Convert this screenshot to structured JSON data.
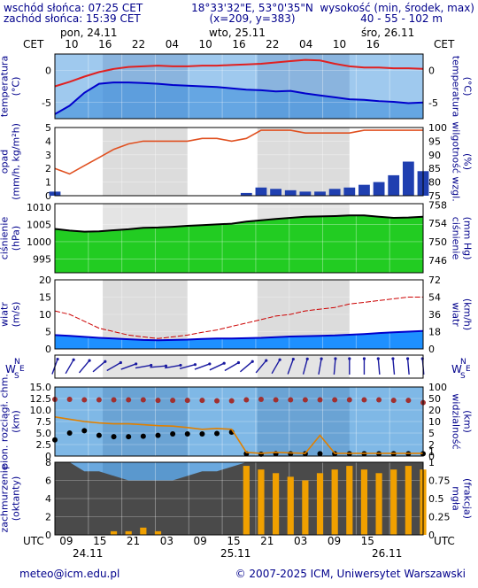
{
  "header": {
    "sunrise": "wschód słońca: 07:25 CET",
    "sunset": "zachód słońca: 15:39 CET",
    "coords": "18°33'32\"E, 53°0'35\"N",
    "grid": "(x=209,  y=383)",
    "altitude_title": "wysokość (min, środek, max)",
    "altitude_values": "40 - 55 - 102 m"
  },
  "footer": {
    "email": "meteo@icm.edu.pl",
    "copyright": "© 2007-2025 ICM, Uniwersytet Warszawski"
  },
  "timeline": {
    "top_tz": "CET",
    "bottom_tz": "UTC",
    "day_labels_top": [
      "pon, 24.11",
      "wto, 25.11",
      "śro, 26.11"
    ],
    "day_labels_bottom": [
      "24.11",
      "25.11",
      "26.11"
    ],
    "hour_labels_top": [
      "10",
      "16",
      "22",
      "04",
      "10",
      "16",
      "22",
      "04",
      "10",
      "16"
    ],
    "hour_labels_bottom": [
      "09",
      "15",
      "21",
      "03",
      "09",
      "15",
      "21",
      "03",
      "09",
      "15"
    ]
  },
  "chart_data": [
    {
      "id": "temperature",
      "type": "line",
      "ylabel_left": "temperatura\n(°C)",
      "ylabel_right": "(°C)\ntemperatura",
      "yticks": [
        "0",
        "-5"
      ],
      "ylim": [
        -7.5,
        2.5
      ],
      "colors": {
        "max": "#e02020",
        "mid": "#0000cc"
      },
      "series": [
        {
          "values": [
            -2.5,
            -1.8,
            -1.0,
            -0.3,
            0.2,
            0.5,
            0.6,
            0.7,
            0.6,
            0.6,
            0.7,
            0.7,
            0.8,
            0.9,
            1.0,
            1.2,
            1.4,
            1.6,
            1.5,
            1.0,
            0.6,
            0.4,
            0.4,
            0.3,
            0.3,
            0.2
          ]
        },
        {
          "values": [
            -6.8,
            -5.5,
            -3.5,
            -2.1,
            -1.9,
            -1.9,
            -2.0,
            -2.1,
            -2.3,
            -2.4,
            -2.5,
            -2.6,
            -2.8,
            -3.0,
            -3.1,
            -3.3,
            -3.2,
            -3.6,
            -3.9,
            -4.2,
            -4.5,
            -4.6,
            -4.8,
            -4.9,
            -5.1,
            -5.0
          ]
        }
      ]
    },
    {
      "id": "precipitation",
      "type": "bar",
      "ylabel_left": "opad\n(mm/h, kg/m²h)",
      "ylabel_right": "(%)\nwilgotność wzgl.",
      "yticks_left": [
        "5",
        "4",
        "3",
        "2",
        "1",
        "0"
      ],
      "yticks_right": [
        "100",
        "95",
        "90",
        "85",
        "80",
        "75"
      ],
      "ylim": [
        0,
        5
      ],
      "ylim_right": [
        75,
        100
      ],
      "colors": {
        "humidity": "#e05020",
        "precip": "#1f3fb0"
      },
      "humidity": [
        85,
        83,
        86,
        89,
        92,
        94,
        95,
        95,
        95,
        95,
        96,
        96,
        95,
        96,
        99,
        99,
        99,
        98,
        98,
        98,
        98,
        99,
        99,
        99,
        99,
        99
      ],
      "precip": [
        0.3,
        0,
        0,
        0,
        0,
        0,
        0,
        0,
        0,
        0,
        0,
        0,
        0,
        0.2,
        0.6,
        0.5,
        0.4,
        0.3,
        0.3,
        0.5,
        0.6,
        0.8,
        1.0,
        1.5,
        2.5,
        1.8
      ]
    },
    {
      "id": "pressure",
      "type": "area",
      "ylabel_left": "ciśnienie\n(hPa)",
      "ylabel_right": "(mm Hg)\nciśnienie",
      "yticks_left": [
        "1010",
        "1005",
        "1000",
        "995"
      ],
      "yticks_right": [
        "758",
        "754",
        "750",
        "746"
      ],
      "ylim": [
        991,
        1011
      ],
      "colors": {
        "line": "#000000",
        "fill": "#22cc22"
      },
      "values": [
        1003.7,
        1003.2,
        1002.9,
        1003.0,
        1003.3,
        1003.6,
        1004.0,
        1004.1,
        1004.3,
        1004.6,
        1004.8,
        1005.0,
        1005.2,
        1005.8,
        1006.2,
        1006.6,
        1006.9,
        1007.2,
        1007.3,
        1007.4,
        1007.6,
        1007.6,
        1007.2,
        1006.9,
        1007.0,
        1007.2
      ]
    },
    {
      "id": "wind",
      "type": "area",
      "ylabel_left": "wiatr\n(m/s)",
      "ylabel_right": "(km/h)\nwiatr",
      "yticks_left": [
        "20",
        "15",
        "10",
        "5",
        "0"
      ],
      "yticks_right": [
        "72",
        "54",
        "36",
        "18",
        "0"
      ],
      "ylim": [
        0,
        20
      ],
      "colors": {
        "speed": "#0000cc",
        "gusts": "#cc0000"
      },
      "speed": [
        4.0,
        3.8,
        3.5,
        3.2,
        3.0,
        2.8,
        2.6,
        2.5,
        2.6,
        2.7,
        2.9,
        3.0,
        3.0,
        3.1,
        3.2,
        3.4,
        3.6,
        3.7,
        3.8,
        3.9,
        4.1,
        4.3,
        4.6,
        4.8,
        5.0,
        5.2
      ],
      "gusts": [
        11,
        10,
        8,
        6,
        5,
        4,
        3.5,
        3.0,
        3.5,
        4.0,
        4.8,
        5.5,
        6.5,
        7.5,
        8.5,
        9.5,
        10.0,
        11.0,
        11.5,
        12.0,
        13.0,
        13.5,
        14.0,
        14.5,
        15.0,
        15.0
      ]
    },
    {
      "id": "wind-direction",
      "type": "scatter",
      "ylabel_left": "W",
      "ylabel_right": "W",
      "compass": {
        "n": "N",
        "s": "S",
        "e": "E"
      },
      "directions": [
        200,
        210,
        220,
        230,
        240,
        250,
        260,
        265,
        260,
        255,
        250,
        245,
        240,
        230,
        220,
        210,
        200,
        195,
        190,
        185,
        180,
        180,
        175,
        175,
        175,
        175
      ]
    },
    {
      "id": "visibility",
      "type": "scatter",
      "ylabel_left": "pion. rozciągł. chm.\n(km)",
      "ylabel_right": "(km)\nwidzialność",
      "yticks_left": [
        "15.0",
        "12.5",
        "10.0",
        "7.5",
        "5.0",
        "2.5",
        "0"
      ],
      "yticks_right": [
        "100",
        "50",
        "20",
        "10",
        "5",
        "2",
        "1",
        "0"
      ],
      "ylim": [
        0,
        15
      ],
      "colors": {
        "visibility": "#e08000",
        "top": "#a03030",
        "base": "#000000"
      },
      "cloud_top": [
        12.3,
        12.3,
        12.2,
        12.2,
        12.2,
        12.2,
        12.2,
        12.1,
        12.1,
        12.1,
        12.1,
        12.0,
        12.0,
        12.2,
        12.3,
        12.2,
        12.2,
        12.2,
        12.2,
        12.2,
        12.2,
        12.2,
        12.2,
        12.1,
        12.1,
        11.6
      ],
      "cloud_base": [
        3.5,
        5.0,
        5.5,
        4.5,
        4.2,
        4.2,
        4.3,
        4.5,
        4.8,
        4.8,
        4.8,
        4.9,
        5.2,
        0.5,
        0.4,
        0.5,
        0.5,
        0.5,
        0.5,
        0.5,
        0.5,
        0.5,
        0.5,
        0.5,
        0.5,
        0.5
      ],
      "visibility": [
        8.5,
        8.0,
        7.5,
        7.2,
        7.0,
        7.0,
        6.8,
        6.6,
        6.5,
        6.2,
        5.8,
        6.0,
        5.8,
        0.8,
        0.6,
        0.8,
        0.7,
        0.6,
        4.5,
        0.6,
        0.6,
        0.6,
        0.6,
        0.6,
        0.6,
        0.6
      ]
    },
    {
      "id": "clouds",
      "type": "area",
      "ylabel_left": "zachmurzenie\n(oktanty)",
      "ylabel_right": "(frakcja)\nmgła",
      "yticks_left": [
        "8",
        "6",
        "4",
        "2",
        "0"
      ],
      "yticks_right": [
        "1",
        "0.75",
        "0.5",
        "0.25",
        "0"
      ],
      "ylim": [
        0,
        8
      ],
      "colors": {
        "fog": "#f0a000"
      },
      "total": [
        8,
        8,
        7,
        7,
        6.5,
        6,
        6,
        6,
        6,
        6.5,
        7,
        7,
        7.5,
        8,
        8,
        8,
        8,
        8,
        8,
        8,
        8,
        8,
        8,
        8,
        8,
        8
      ],
      "fog": [
        0,
        0,
        0,
        0,
        0.05,
        0.05,
        0.1,
        0.05,
        0,
        0,
        0,
        0,
        0,
        0.95,
        0.9,
        0.85,
        0.8,
        0.75,
        0.85,
        0.9,
        0.95,
        0.9,
        0.85,
        0.9,
        0.95,
        0.9
      ]
    }
  ]
}
